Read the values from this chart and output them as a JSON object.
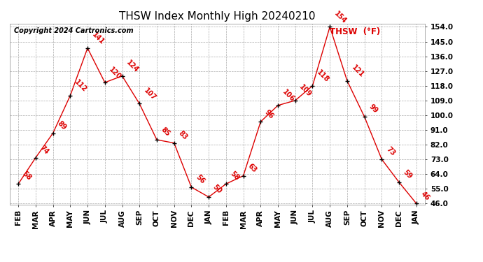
{
  "title": "THSW Index Monthly High 20240210",
  "copyright": "Copyright 2024 Cartronics.com",
  "legend_label": "THSW  (°F)",
  "months": [
    "FEB",
    "MAR",
    "APR",
    "MAY",
    "JUN",
    "JUL",
    "AUG",
    "SEP",
    "OCT",
    "NOV",
    "DEC",
    "JAN",
    "FEB",
    "MAR",
    "APR",
    "MAY",
    "JUN",
    "JUL",
    "AUG",
    "SEP",
    "OCT",
    "NOV",
    "DEC",
    "JAN"
  ],
  "values": [
    58,
    74,
    89,
    112,
    141,
    120,
    124,
    107,
    85,
    83,
    56,
    50,
    58,
    63,
    96,
    106,
    109,
    118,
    154,
    121,
    99,
    73,
    59,
    46
  ],
  "line_color": "#dd0000",
  "marker_color": "#000000",
  "background_color": "#ffffff",
  "grid_color": "#aaaaaa",
  "ylim_min": 46.0,
  "ylim_max": 154.0,
  "yticks": [
    46.0,
    55.0,
    64.0,
    73.0,
    82.0,
    91.0,
    100.0,
    109.0,
    118.0,
    127.0,
    136.0,
    145.0,
    154.0
  ],
  "title_fontsize": 11,
  "tick_fontsize": 7.5,
  "annotation_fontsize": 7,
  "copyright_fontsize": 7
}
